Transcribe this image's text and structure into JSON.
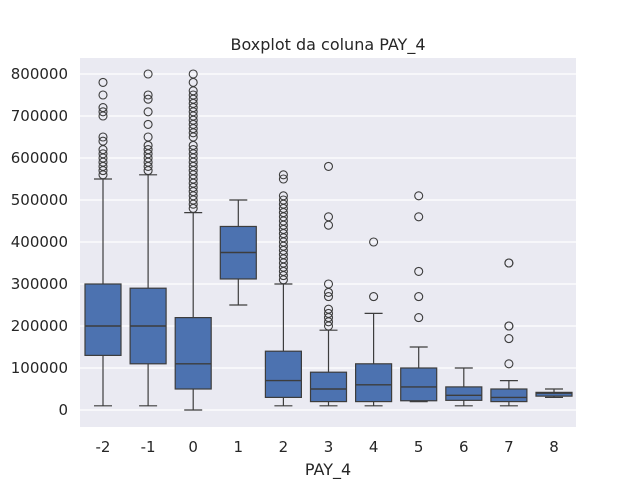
{
  "chart_data": {
    "type": "boxplot",
    "title": "Boxplot da coluna PAY_4",
    "xlabel": "PAY_4",
    "ylabel": "",
    "ylim": [
      -35000,
      830000
    ],
    "grid": true,
    "yticks": [
      0,
      100000,
      200000,
      300000,
      400000,
      500000,
      600000,
      700000,
      800000
    ],
    "ytick_labels": [
      "0",
      "100000",
      "200000",
      "300000",
      "400000",
      "500000",
      "600000",
      "700000",
      "800000"
    ],
    "categories": [
      "-2",
      "-1",
      "0",
      "1",
      "2",
      "3",
      "4",
      "5",
      "6",
      "7",
      "8"
    ],
    "colors": {
      "box": "#4c72b0",
      "background": "#eaeaf2",
      "grid": "#ffffff",
      "line": "#3d3d3d"
    },
    "boxes": [
      {
        "category": "-2",
        "whisker_low": 10000,
        "q1": 130000,
        "median": 200000,
        "q3": 300000,
        "whisker_high": 550000,
        "outliers": [
          560000,
          570000,
          580000,
          590000,
          600000,
          610000,
          620000,
          640000,
          650000,
          700000,
          710000,
          720000,
          750000,
          780000
        ]
      },
      {
        "category": "-1",
        "whisker_low": 10000,
        "q1": 110000,
        "median": 200000,
        "q3": 290000,
        "whisker_high": 560000,
        "outliers": [
          570000,
          580000,
          590000,
          600000,
          610000,
          620000,
          630000,
          650000,
          680000,
          710000,
          740000,
          750000,
          800000
        ]
      },
      {
        "category": "0",
        "whisker_low": 0,
        "q1": 50000,
        "median": 110000,
        "q3": 220000,
        "whisker_high": 470000,
        "outliers": [
          480000,
          490000,
          500000,
          510000,
          520000,
          530000,
          540000,
          550000,
          560000,
          570000,
          580000,
          590000,
          600000,
          610000,
          620000,
          630000,
          650000,
          660000,
          670000,
          680000,
          690000,
          700000,
          710000,
          720000,
          730000,
          740000,
          750000,
          760000,
          780000,
          800000
        ]
      },
      {
        "category": "1",
        "whisker_low": 250000,
        "q1": 312000,
        "median": 375000,
        "q3": 437000,
        "whisker_high": 500000,
        "outliers": []
      },
      {
        "category": "2",
        "whisker_low": 10000,
        "q1": 30000,
        "median": 70000,
        "q3": 140000,
        "whisker_high": 300000,
        "outliers": [
          310000,
          320000,
          330000,
          340000,
          350000,
          360000,
          370000,
          380000,
          390000,
          400000,
          410000,
          420000,
          430000,
          440000,
          450000,
          460000,
          470000,
          480000,
          490000,
          500000,
          510000,
          550000,
          560000
        ]
      },
      {
        "category": "3",
        "whisker_low": 10000,
        "q1": 20000,
        "median": 50000,
        "q3": 90000,
        "whisker_high": 190000,
        "outliers": [
          200000,
          210000,
          220000,
          230000,
          240000,
          270000,
          280000,
          300000,
          440000,
          460000,
          580000
        ]
      },
      {
        "category": "4",
        "whisker_low": 10000,
        "q1": 20000,
        "median": 60000,
        "q3": 110000,
        "whisker_high": 230000,
        "outliers": [
          270000,
          400000
        ]
      },
      {
        "category": "5",
        "whisker_low": 20000,
        "q1": 22000,
        "median": 55000,
        "q3": 100000,
        "whisker_high": 150000,
        "outliers": [
          220000,
          270000,
          330000,
          460000,
          510000
        ]
      },
      {
        "category": "6",
        "whisker_low": 10000,
        "q1": 23000,
        "median": 35000,
        "q3": 55000,
        "whisker_high": 100000,
        "outliers": []
      },
      {
        "category": "7",
        "whisker_low": 10000,
        "q1": 20000,
        "median": 30000,
        "q3": 50000,
        "whisker_high": 70000,
        "outliers": [
          110000,
          170000,
          200000,
          200000,
          350000,
          350000
        ]
      },
      {
        "category": "8",
        "whisker_low": 30000,
        "q1": 33000,
        "median": 40000,
        "q3": 42000,
        "whisker_high": 50000,
        "outliers": []
      }
    ]
  }
}
